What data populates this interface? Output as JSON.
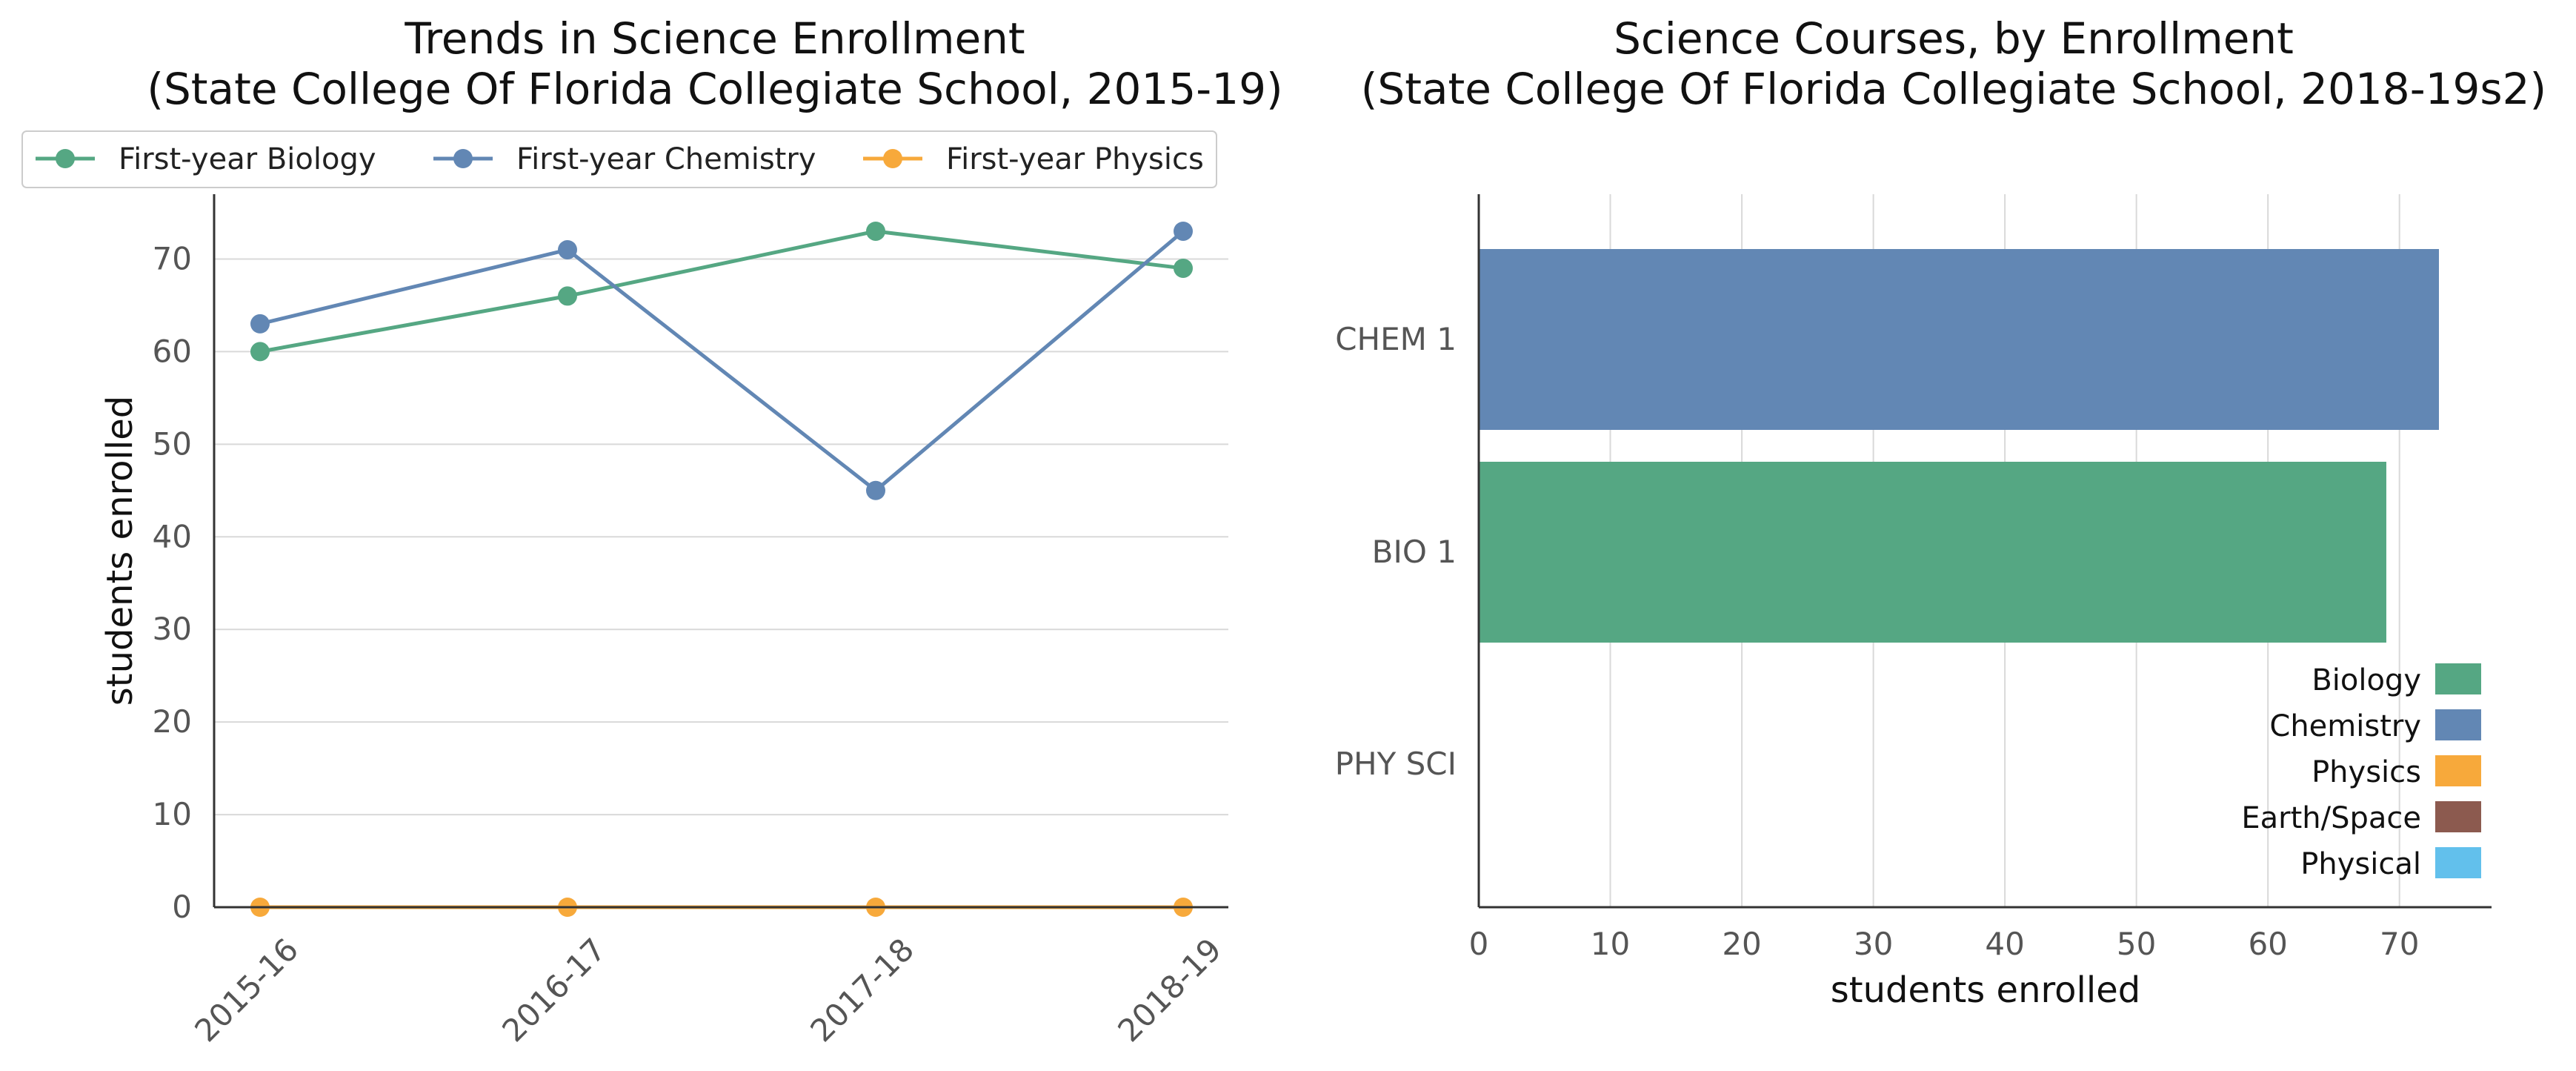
{
  "chart_data": [
    {
      "type": "line",
      "title": "Trends in Science Enrollment",
      "subtitle": "(State College Of Florida Collegiate School, 2015-19)",
      "xlabel": "",
      "ylabel": "students enrolled",
      "categories": [
        "2015-16",
        "2016-17",
        "2017-18",
        "2018-19"
      ],
      "ylim": [
        0,
        77
      ],
      "yticks": [
        0,
        10,
        20,
        30,
        40,
        50,
        60,
        70
      ],
      "grid": "horizontal",
      "legend": "top",
      "series": [
        {
          "name": "First-year Biology",
          "color": "#55a783",
          "values": [
            60,
            66,
            73,
            69
          ]
        },
        {
          "name": "First-year Chemistry",
          "color": "#6287b4",
          "values": [
            63,
            71,
            45,
            73
          ]
        },
        {
          "name": "First-year Physics",
          "color": "#f7a93b",
          "values": [
            0,
            0,
            0,
            0
          ]
        }
      ]
    },
    {
      "type": "bar",
      "orientation": "horizontal",
      "title": "Science Courses, by Enrollment",
      "subtitle": "(State College Of Florida Collegiate School, 2018-19s2)",
      "xlabel": "students enrolled",
      "ylabel": "",
      "categories": [
        "CHEM 1",
        "BIO 1",
        "PHY SCI"
      ],
      "values": [
        73,
        69,
        0
      ],
      "bar_subjects": [
        "Chemistry",
        "Biology",
        "Physics"
      ],
      "xlim": [
        0,
        77
      ],
      "xticks": [
        0,
        10,
        20,
        30,
        40,
        50,
        60,
        70
      ],
      "grid": "vertical",
      "legend": "bottom-right",
      "legend_entries": [
        {
          "name": "Biology",
          "color": "#55a783"
        },
        {
          "name": "Chemistry",
          "color": "#6287b4"
        },
        {
          "name": "Physics",
          "color": "#f7a93b"
        },
        {
          "name": "Earth/Space",
          "color": "#8c5a4f"
        },
        {
          "name": "Physical",
          "color": "#62c0ec"
        }
      ]
    }
  ]
}
